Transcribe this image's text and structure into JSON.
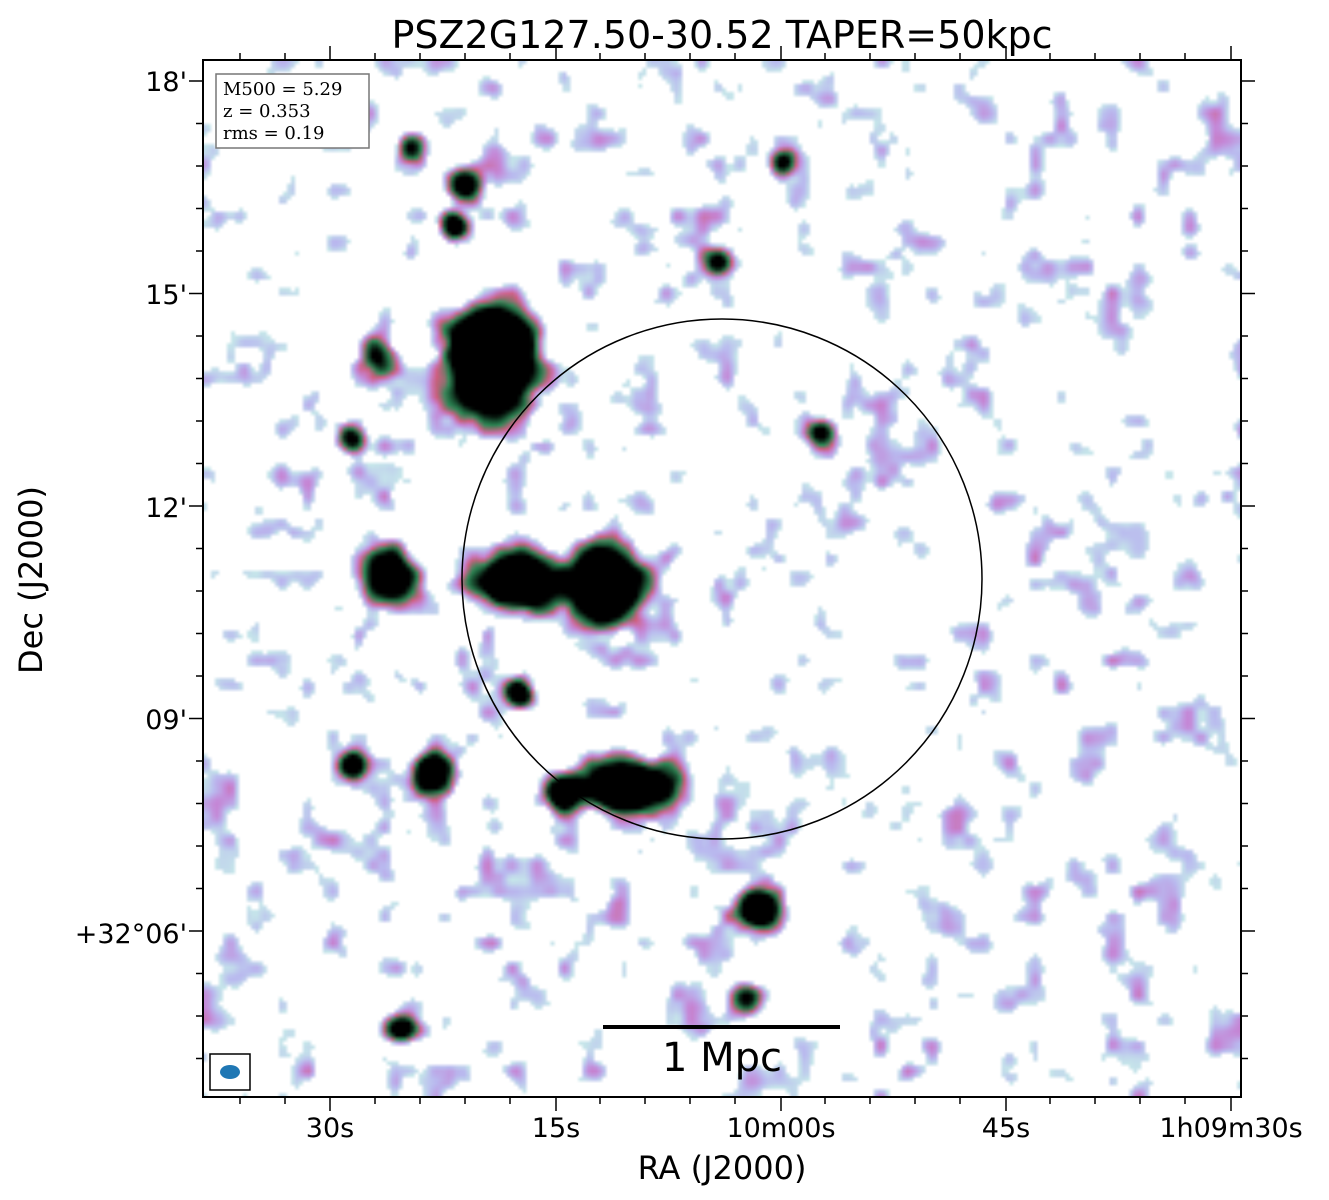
{
  "chart_data": {
    "type": "heatmap",
    "title": "PSZ2G127.50-30.52 TAPER=50kpc",
    "xlabel": "RA (J2000)",
    "ylabel": "Dec (J2000)",
    "x_ticks": [
      "30s",
      "15s",
      "10m00s",
      "45s",
      "1h09m30s"
    ],
    "y_ticks": [
      "18'",
      "15'",
      "12'",
      "09'",
      "+32°06'"
    ],
    "info_box": [
      "M500 = 5.29",
      "z = 0.353",
      "rms = 0.19"
    ],
    "scalebar_label": "1 Mpc",
    "grid": false,
    "colormap": [
      "#ffffff",
      "#c6e6ea",
      "#b9b9ef",
      "#c586d6",
      "#cf5f80",
      "#2e8b57",
      "#000000"
    ],
    "circle_color": "#000000",
    "beam_color": "#1f77b4",
    "sources": [
      {
        "ra_min": -0.43,
        "dec_min": 14.3,
        "peak": 7,
        "w": 0.28,
        "h": 0.22
      },
      {
        "ra_min": -0.43,
        "dec_min": 13.8,
        "peak": 7,
        "w": 0.26,
        "h": 0.3
      },
      {
        "ra_min": -0.38,
        "dec_min": 10.9,
        "peak": 7,
        "w": 0.28,
        "h": 0.18
      },
      {
        "ra_min": -0.22,
        "dec_min": 10.85,
        "peak": 7,
        "w": 0.25,
        "h": 0.28
      },
      {
        "ra_min": -0.18,
        "dec_min": 8.0,
        "peak": 7,
        "w": 0.33,
        "h": 0.16
      },
      {
        "ra_min": -0.3,
        "dec_min": 7.9,
        "peak": 4,
        "w": 0.12,
        "h": 0.12
      },
      {
        "ra_min": 0.06,
        "dec_min": 6.3,
        "peak": 6,
        "w": 0.14,
        "h": 0.14
      },
      {
        "ra_min": -0.62,
        "dec_min": 10.95,
        "peak": 5,
        "w": 0.18,
        "h": 0.2
      },
      {
        "ra_min": -0.54,
        "dec_min": 8.2,
        "peak": 5,
        "w": 0.14,
        "h": 0.14
      },
      {
        "ra_min": -0.69,
        "dec_min": 8.3,
        "peak": 4,
        "w": 0.1,
        "h": 0.1
      },
      {
        "ra_min": -0.48,
        "dec_min": 16.5,
        "peak": 4,
        "w": 0.12,
        "h": 0.12
      },
      {
        "ra_min": -0.5,
        "dec_min": 15.9,
        "peak": 4,
        "w": 0.1,
        "h": 0.1
      },
      {
        "ra_min": -0.38,
        "dec_min": 9.3,
        "peak": 4,
        "w": 0.1,
        "h": 0.1
      },
      {
        "ra_min": 0.04,
        "dec_min": 5.0,
        "peak": 3,
        "w": 0.12,
        "h": 0.12
      },
      {
        "ra_min": -0.6,
        "dec_min": 4.6,
        "peak": 4,
        "w": 0.12,
        "h": 0.1
      },
      {
        "ra_min": 0.11,
        "dec_min": 16.8,
        "peak": 3,
        "w": 0.1,
        "h": 0.1
      },
      {
        "ra_min": -0.58,
        "dec_min": 17.0,
        "peak": 3,
        "w": 0.1,
        "h": 0.1
      },
      {
        "ra_min": -0.64,
        "dec_min": 14.1,
        "peak": 3,
        "w": 0.12,
        "h": 0.14
      },
      {
        "ra_min": 0.18,
        "dec_min": 13.0,
        "peak": 3,
        "w": 0.1,
        "h": 0.1
      },
      {
        "ra_min": -0.69,
        "dec_min": 12.9,
        "peak": 3,
        "w": 0.1,
        "h": 0.1
      },
      {
        "ra_min": -0.01,
        "dec_min": 15.4,
        "peak": 3,
        "w": 0.1,
        "h": 0.1
      }
    ]
  }
}
